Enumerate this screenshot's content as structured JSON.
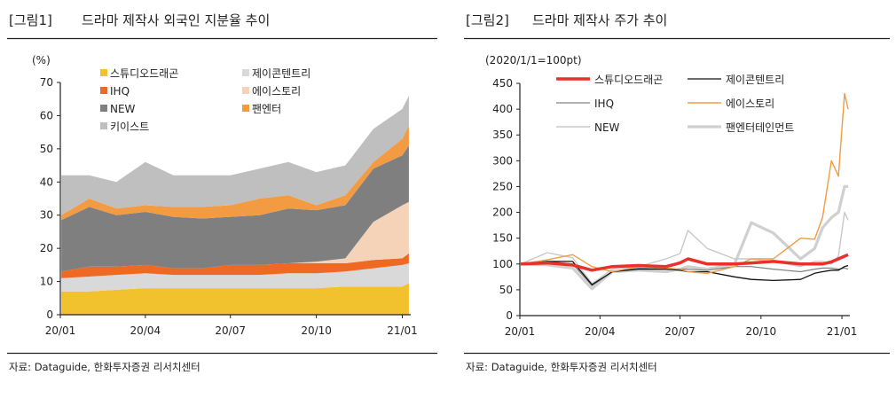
{
  "figures": [
    {
      "label": "[그림1]",
      "title": "드라마 제작사 외국인 지분율 추이",
      "source": "자료: Dataguide, 한화투자증권 리서치센터"
    },
    {
      "label": "[그림2]",
      "title": "드라마 제작사 주가 추이",
      "source": "자료: Dataguide, 한화투자증권 리서치센터"
    }
  ],
  "chart_data": [
    {
      "type": "area",
      "stacked": true,
      "title": "드라마 제작사 외국인 지분율 추이",
      "unit_label": "(%)",
      "ylim": [
        0,
        70
      ],
      "yticks": [
        0,
        10,
        20,
        30,
        40,
        50,
        60,
        70
      ],
      "xticks": [
        "20/01",
        "20/04",
        "20/07",
        "20/10",
        "21/01"
      ],
      "xtick_dates": [
        "2020-01-01",
        "2020-04-01",
        "2020-07-01",
        "2020-10-01",
        "2021-01-01"
      ],
      "xlim": [
        "2020-01-01",
        "2021-01-10"
      ],
      "legend_placement": "top",
      "x": [
        "2020-01-02",
        "2020-02-01",
        "2020-03-01",
        "2020-04-01",
        "2020-05-01",
        "2020-06-01",
        "2020-07-01",
        "2020-08-01",
        "2020-09-01",
        "2020-10-01",
        "2020-11-01",
        "2020-12-01",
        "2021-01-01",
        "2021-01-08"
      ],
      "series": [
        {
          "name": "스튜디오드래곤",
          "color": "#F2C12E",
          "values": [
            7,
            7,
            7.5,
            8,
            8,
            8,
            8,
            8,
            8,
            8,
            8.5,
            8.5,
            8.5,
            9.5
          ]
        },
        {
          "name": "제이콘텐트리",
          "color": "#D9D9D9",
          "values": [
            4,
            4.5,
            4.5,
            4.5,
            4,
            4,
            4,
            4,
            4.5,
            4.5,
            4.5,
            5.5,
            6.5,
            6
          ]
        },
        {
          "name": "IHQ",
          "color": "#EE6A24",
          "values": [
            2,
            3,
            2.5,
            2.5,
            2,
            2,
            3,
            3,
            3,
            3,
            2.5,
            2.5,
            2,
            3
          ]
        },
        {
          "name": "에이스토리",
          "color": "#F5D3B8",
          "values": [
            0,
            0,
            0,
            0,
            0,
            0,
            0,
            0,
            0,
            0.5,
            1.5,
            11.5,
            16,
            15.5
          ]
        },
        {
          "name": "NEW",
          "color": "#7F7F7F",
          "values": [
            15.5,
            18,
            15.5,
            16,
            15.5,
            15,
            14.5,
            15,
            16.5,
            15.5,
            16,
            16,
            15,
            17
          ]
        },
        {
          "name": "팬엔터",
          "color": "#F29B43",
          "values": [
            1.5,
            2.5,
            2,
            2,
            3,
            3.5,
            3.5,
            5,
            4,
            1.5,
            3,
            2,
            5,
            6
          ]
        },
        {
          "name": "키이스트",
          "color": "#BFBFBF",
          "values": [
            12,
            7,
            8,
            13,
            9.5,
            9.5,
            9,
            9,
            10,
            10,
            9,
            10,
            9,
            9
          ]
        }
      ]
    },
    {
      "type": "line",
      "title": "드라마 제작사 주가 추이",
      "unit_label": "(2020/1/1=100pt)",
      "ylim": [
        0,
        450
      ],
      "yticks": [
        0,
        50,
        100,
        150,
        200,
        250,
        300,
        350,
        400,
        450
      ],
      "xticks": [
        "20/01",
        "20/04",
        "20/07",
        "20/10",
        "21/01"
      ],
      "xtick_dates": [
        "2020-01-01",
        "2020-04-01",
        "2020-07-01",
        "2020-10-01",
        "2021-01-01"
      ],
      "xlim": [
        "2020-01-01",
        "2021-01-10"
      ],
      "legend_placement": "top",
      "x": [
        "2020-01-02",
        "2020-02-01",
        "2020-03-01",
        "2020-03-23",
        "2020-04-15",
        "2020-05-15",
        "2020-06-15",
        "2020-07-01",
        "2020-07-10",
        "2020-08-01",
        "2020-09-01",
        "2020-09-20",
        "2020-10-15",
        "2020-11-15",
        "2020-12-01",
        "2020-12-10",
        "2020-12-20",
        "2020-12-28",
        "2021-01-04",
        "2021-01-08"
      ],
      "series": [
        {
          "name": "스튜디오드래곤",
          "color": "#E8312A",
          "width": 3.5,
          "values": [
            100,
            102,
            98,
            88,
            95,
            97,
            95,
            102,
            110,
            100,
            100,
            102,
            105,
            100,
            100,
            100,
            104,
            110,
            115,
            118
          ]
        },
        {
          "name": "제이콘텐트리",
          "color": "#111111",
          "width": 1.3,
          "values": [
            100,
            105,
            105,
            60,
            85,
            90,
            90,
            88,
            85,
            85,
            75,
            70,
            68,
            70,
            82,
            85,
            88,
            88,
            95,
            97
          ]
        },
        {
          "name": "IHQ",
          "color": "#808080",
          "width": 1.2,
          "values": [
            100,
            105,
            100,
            58,
            85,
            92,
            90,
            90,
            90,
            88,
            95,
            95,
            90,
            85,
            90,
            92,
            92,
            90,
            92,
            90
          ]
        },
        {
          "name": "에이스토리",
          "color": "#F29B43",
          "width": 1.4,
          "values": [
            100,
            108,
            118,
            95,
            85,
            95,
            92,
            90,
            85,
            82,
            95,
            110,
            110,
            150,
            148,
            190,
            300,
            270,
            430,
            400
          ]
        },
        {
          "name": "NEW",
          "color": "#C8C8C8",
          "width": 1.4,
          "values": [
            100,
            122,
            112,
            62,
            90,
            95,
            110,
            120,
            165,
            130,
            110,
            110,
            105,
            95,
            105,
            105,
            100,
            115,
            200,
            185
          ]
        },
        {
          "name": "팬엔터테인먼트",
          "color": "#D0D0D0",
          "width": 3.2,
          "values": [
            100,
            98,
            92,
            52,
            85,
            88,
            85,
            90,
            95,
            90,
            100,
            180,
            160,
            110,
            130,
            170,
            190,
            200,
            250,
            250
          ]
        }
      ]
    }
  ]
}
